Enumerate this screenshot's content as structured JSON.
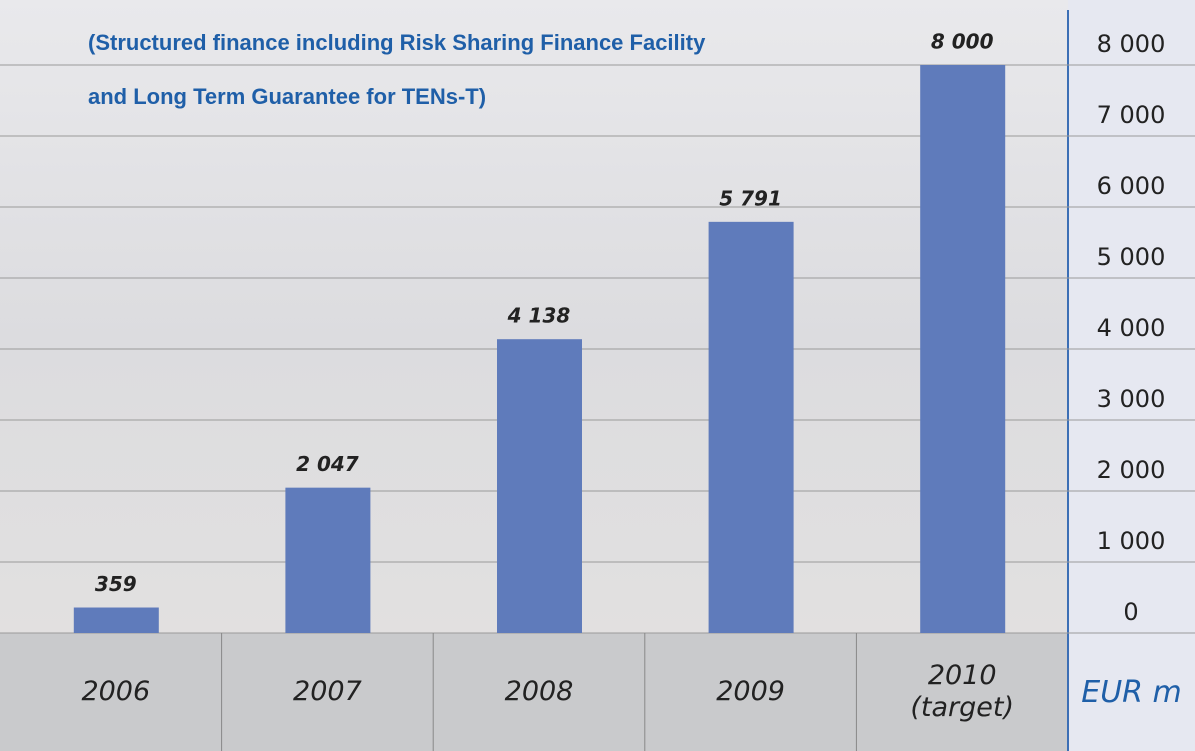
{
  "chart_data": {
    "type": "bar",
    "title": [
      "(Structured finance including Risk Sharing Finance Facility",
      "and Long Term Guarantee for TENs-T)"
    ],
    "categories": [
      "2006",
      "2007",
      "2008",
      "2009",
      "2010 (target)"
    ],
    "values": [
      359,
      2047,
      4138,
      5791,
      8000
    ],
    "value_labels": [
      "359",
      "2 047",
      "4 138",
      "5 791",
      "8 000"
    ],
    "color": "#5f7bbb",
    "y_axis_label": "EUR m",
    "ylim": [
      0,
      8000
    ],
    "yticks": [
      0,
      {
        "value": 1000,
        "label": "1 000"
      },
      {
        "value": 2000,
        "label": "2 000"
      },
      {
        "value": 3000,
        "label": "3 000"
      },
      {
        "value": 4000,
        "label": "4 000"
      },
      {
        "value": 5000,
        "label": "5 000"
      },
      {
        "value": 6000,
        "label": "6 000"
      },
      {
        "value": 7000,
        "label": "7 000"
      },
      {
        "value": 8000,
        "label": "8 000"
      }
    ],
    "grid": true
  }
}
